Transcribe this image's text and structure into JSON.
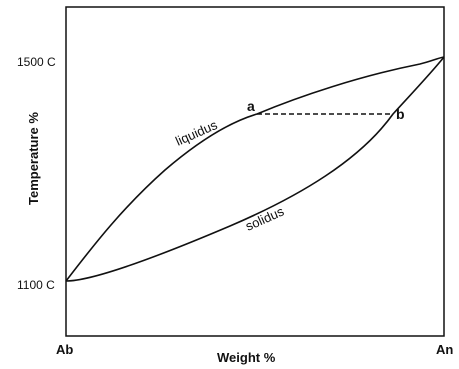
{
  "diagram": {
    "y_axis_title": "Temperature %",
    "x_axis_title": "Weight %",
    "y_ticks": {
      "top": "1500 C",
      "bottom": "1100 C"
    },
    "x_ends": {
      "left": "Ab",
      "right": "An"
    },
    "curves": {
      "liquidus": "liquidus",
      "solidus": "solidus"
    },
    "tie_line": {
      "start_label": "a",
      "end_label": "b"
    },
    "colors": {
      "line": "#111111",
      "background": "#ffffff"
    }
  }
}
